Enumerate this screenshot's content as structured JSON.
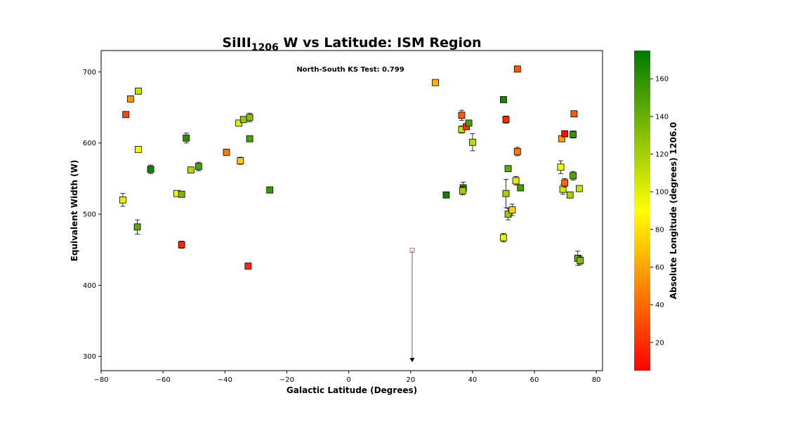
{
  "chart_data": {
    "type": "scatter",
    "title": {
      "main": "SiIII",
      "sub": "1206",
      "rest": " W vs Latitude: ISM Region"
    },
    "xlabel": "Galactic Latitude (Degrees)",
    "ylabel": "Equivalent Width (W)",
    "xlim": [
      -80,
      82
    ],
    "ylim": [
      280,
      730
    ],
    "xticks": [
      -80,
      -60,
      -40,
      -20,
      0,
      20,
      40,
      60,
      80
    ],
    "yticks": [
      300,
      400,
      500,
      600,
      700
    ],
    "xtick_labels": [
      "−80",
      "−60",
      "−40",
      "−20",
      "0",
      "20",
      "40",
      "60",
      "80"
    ],
    "ytick_labels": [
      "300",
      "400",
      "500",
      "600",
      "700"
    ],
    "annotation": "North-South KS Test: 0.799",
    "colorbar": {
      "label": "Absolute Longitude (degrees) 1206.0",
      "range": [
        5,
        175
      ],
      "ticks": [
        20,
        40,
        60,
        80,
        100,
        120,
        140,
        160
      ],
      "tick_labels": [
        "20",
        "40",
        "60",
        "80",
        "100",
        "120",
        "140",
        "160"
      ],
      "colors": [
        "#ff0000",
        "#ffff00",
        "#007a00"
      ]
    },
    "points": [
      {
        "x": -73.0,
        "y": 520,
        "err": 9,
        "c": 98
      },
      {
        "x": -72.0,
        "y": 640,
        "err": 3,
        "c": 28
      },
      {
        "x": -70.5,
        "y": 662,
        "err": 3,
        "c": 55
      },
      {
        "x": -68.0,
        "y": 673,
        "err": 3,
        "c": 110
      },
      {
        "x": -68.0,
        "y": 591,
        "err": 3,
        "c": 95
      },
      {
        "x": -68.3,
        "y": 482,
        "err": 10,
        "c": 145
      },
      {
        "x": -64.0,
        "y": 563,
        "err": 6,
        "c": 170
      },
      {
        "x": -55.5,
        "y": 529,
        "err": 2,
        "c": 95
      },
      {
        "x": -54.0,
        "y": 528,
        "err": 3,
        "c": 135
      },
      {
        "x": -54.0,
        "y": 457,
        "err": 5,
        "c": 18
      },
      {
        "x": -52.5,
        "y": 607,
        "err": 7,
        "c": 162
      },
      {
        "x": -51.0,
        "y": 562,
        "err": 3,
        "c": 115
      },
      {
        "x": -48.5,
        "y": 567,
        "err": 6,
        "c": 150
      },
      {
        "x": -39.5,
        "y": 587,
        "err": 3,
        "c": 45
      },
      {
        "x": -35.5,
        "y": 628,
        "err": 3,
        "c": 100
      },
      {
        "x": -35.0,
        "y": 575,
        "err": 5,
        "c": 72
      },
      {
        "x": -34.0,
        "y": 633,
        "err": 3,
        "c": 125
      },
      {
        "x": -32.0,
        "y": 636,
        "err": 6,
        "c": 130
      },
      {
        "x": -32.0,
        "y": 606,
        "err": 3,
        "c": 150
      },
      {
        "x": -32.5,
        "y": 427,
        "err": 2,
        "c": 18
      },
      {
        "x": -25.5,
        "y": 534,
        "err": 3,
        "c": 155
      },
      {
        "x": 20.5,
        "y": 449,
        "err": 0,
        "c": 50,
        "upper": true,
        "arrow_to": 293
      },
      {
        "x": 28.0,
        "y": 685,
        "err": 2,
        "c": 65
      },
      {
        "x": 31.5,
        "y": 527,
        "err": 2,
        "c": 170
      },
      {
        "x": 36.5,
        "y": 639,
        "err": 7,
        "c": 35
      },
      {
        "x": 36.5,
        "y": 619,
        "err": 5,
        "c": 110
      },
      {
        "x": 37.0,
        "y": 537,
        "err": 8,
        "c": 160
      },
      {
        "x": 36.8,
        "y": 533,
        "err": 6,
        "c": 120
      },
      {
        "x": 38.0,
        "y": 623,
        "err": 3,
        "c": 22
      },
      {
        "x": 38.8,
        "y": 628,
        "err": 3,
        "c": 150
      },
      {
        "x": 40.0,
        "y": 601,
        "err": 12,
        "c": 112
      },
      {
        "x": 50.0,
        "y": 661,
        "err": 3,
        "c": 168
      },
      {
        "x": 50.0,
        "y": 467,
        "err": 6,
        "c": 98
      },
      {
        "x": 50.8,
        "y": 633,
        "err": 5,
        "c": 20
      },
      {
        "x": 50.8,
        "y": 529,
        "err": 20,
        "c": 120
      },
      {
        "x": 51.5,
        "y": 564,
        "err": 3,
        "c": 145
      },
      {
        "x": 51.5,
        "y": 500,
        "err": 8,
        "c": 122
      },
      {
        "x": 52.8,
        "y": 506,
        "err": 8,
        "c": 75
      },
      {
        "x": 54.0,
        "y": 547,
        "err": 6,
        "c": 100
      },
      {
        "x": 54.5,
        "y": 588,
        "err": 6,
        "c": 45
      },
      {
        "x": 54.5,
        "y": 704,
        "err": 4,
        "c": 35
      },
      {
        "x": 55.5,
        "y": 537,
        "err": 3,
        "c": 152
      },
      {
        "x": 68.5,
        "y": 566,
        "err": 9,
        "c": 92
      },
      {
        "x": 68.8,
        "y": 606,
        "err": 3,
        "c": 58
      },
      {
        "x": 69.2,
        "y": 535,
        "err": 7,
        "c": 105
      },
      {
        "x": 69.8,
        "y": 613,
        "err": 2,
        "c": 8
      },
      {
        "x": 69.8,
        "y": 544,
        "err": 6,
        "c": 40
      },
      {
        "x": 71.5,
        "y": 527,
        "err": 3,
        "c": 120
      },
      {
        "x": 72.5,
        "y": 612,
        "err": 5,
        "c": 158
      },
      {
        "x": 72.8,
        "y": 641,
        "err": 2,
        "c": 35
      },
      {
        "x": 72.5,
        "y": 554,
        "err": 6,
        "c": 148
      },
      {
        "x": 74.0,
        "y": 438,
        "err": 10,
        "c": 140
      },
      {
        "x": 74.5,
        "y": 536,
        "err": 4,
        "c": 110
      },
      {
        "x": 74.8,
        "y": 435,
        "err": 6,
        "c": 132
      }
    ]
  }
}
